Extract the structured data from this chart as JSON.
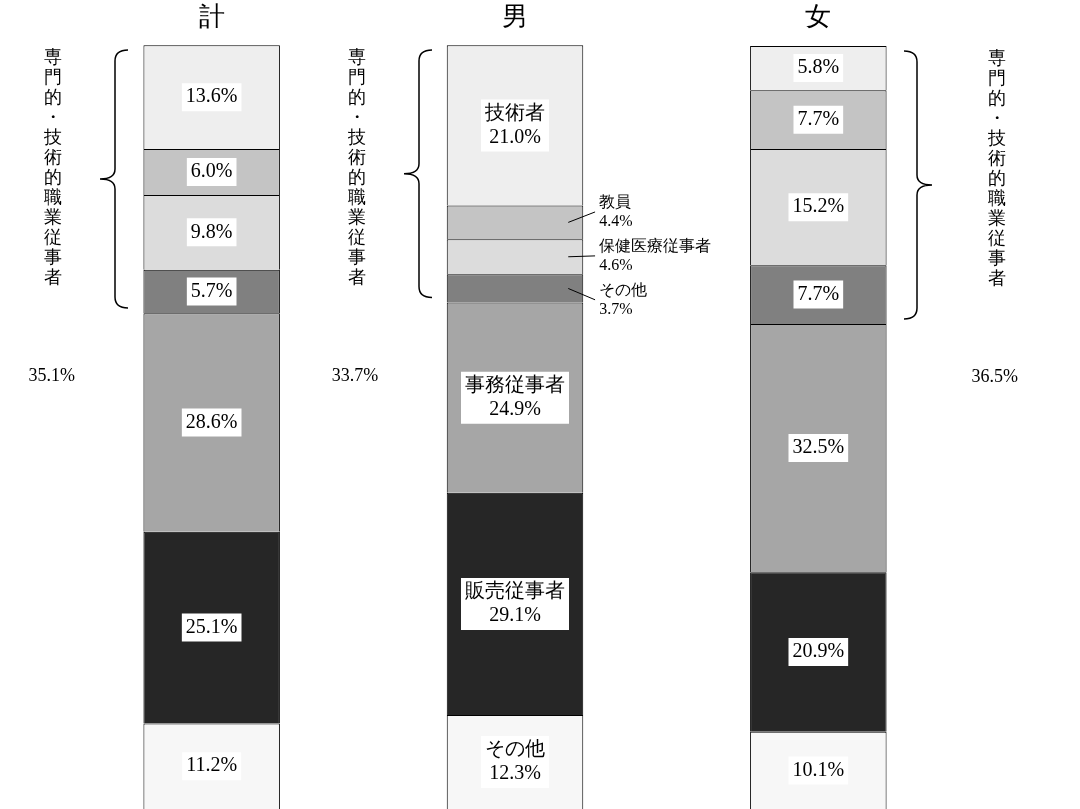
{
  "chart_data": {
    "type": "bar",
    "stacked": true,
    "categories": [
      "計",
      "男",
      "女"
    ],
    "series": [
      {
        "name": "その他",
        "color": "#f7f7f7",
        "values": [
          11.2,
          12.3,
          10.1
        ],
        "value_labels": [
          "11.2%",
          "12.3%",
          "10.1%"
        ]
      },
      {
        "name": "販売従事者",
        "color": "#262626",
        "values": [
          25.1,
          29.1,
          20.9
        ],
        "value_labels": [
          "25.1%",
          "29.1%",
          "20.9%"
        ]
      },
      {
        "name": "事務従事者",
        "color": "#a6a6a6",
        "values": [
          28.6,
          24.9,
          32.5
        ],
        "value_labels": [
          "28.6%",
          "24.9%",
          "32.5%"
        ]
      },
      {
        "name": "その他",
        "color": "#808080",
        "values": [
          5.7,
          3.7,
          7.7
        ],
        "value_labels": [
          "5.7%",
          "3.7%",
          "7.7%"
        ]
      },
      {
        "name": "保健医療従事者",
        "color": "#dcdcdc",
        "values": [
          9.8,
          4.6,
          15.2
        ],
        "value_labels": [
          "9.8%",
          "4.6%",
          "15.2%"
        ]
      },
      {
        "name": "教員",
        "color": "#c4c4c4",
        "values": [
          6.0,
          4.4,
          7.7
        ],
        "value_labels": [
          "6.0%",
          "4.4%",
          "7.7%"
        ]
      },
      {
        "name": "技術者",
        "color": "#eeeeee",
        "values": [
          13.6,
          21.0,
          5.8
        ],
        "value_labels": [
          "13.6%",
          "21.0%",
          "5.8%"
        ]
      }
    ],
    "annotations": [
      "専門的・技術的職業従事者",
      "35.1%",
      "専門的・技術的職業従事者",
      "33.7%",
      "専門的・技術的職業従事者",
      "36.5%"
    ],
    "grid": false,
    "legend": false,
    "tick_labels": "x"
  }
}
